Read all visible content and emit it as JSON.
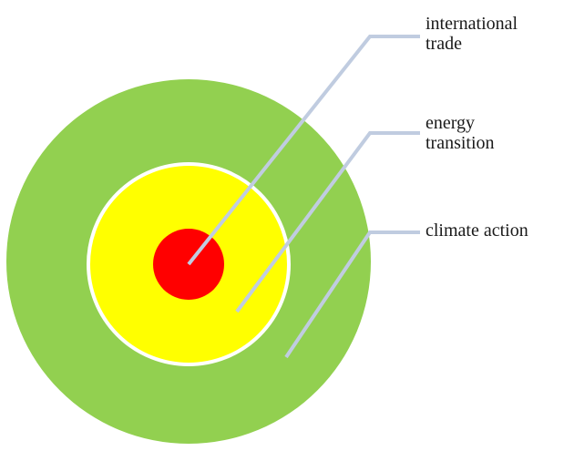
{
  "layers": [
    {
      "id": "climate",
      "label_lines": [
        "climate action"
      ],
      "color": "#92D050"
    },
    {
      "id": "energy",
      "label_lines": [
        "energy",
        "transition"
      ],
      "color": "#FFFF00"
    },
    {
      "id": "trade",
      "label_lines": [
        "international",
        "trade"
      ],
      "color": "#FF0000"
    }
  ],
  "connector_color": "#C0CCE0",
  "ring_border_color": "#FFFFFF"
}
